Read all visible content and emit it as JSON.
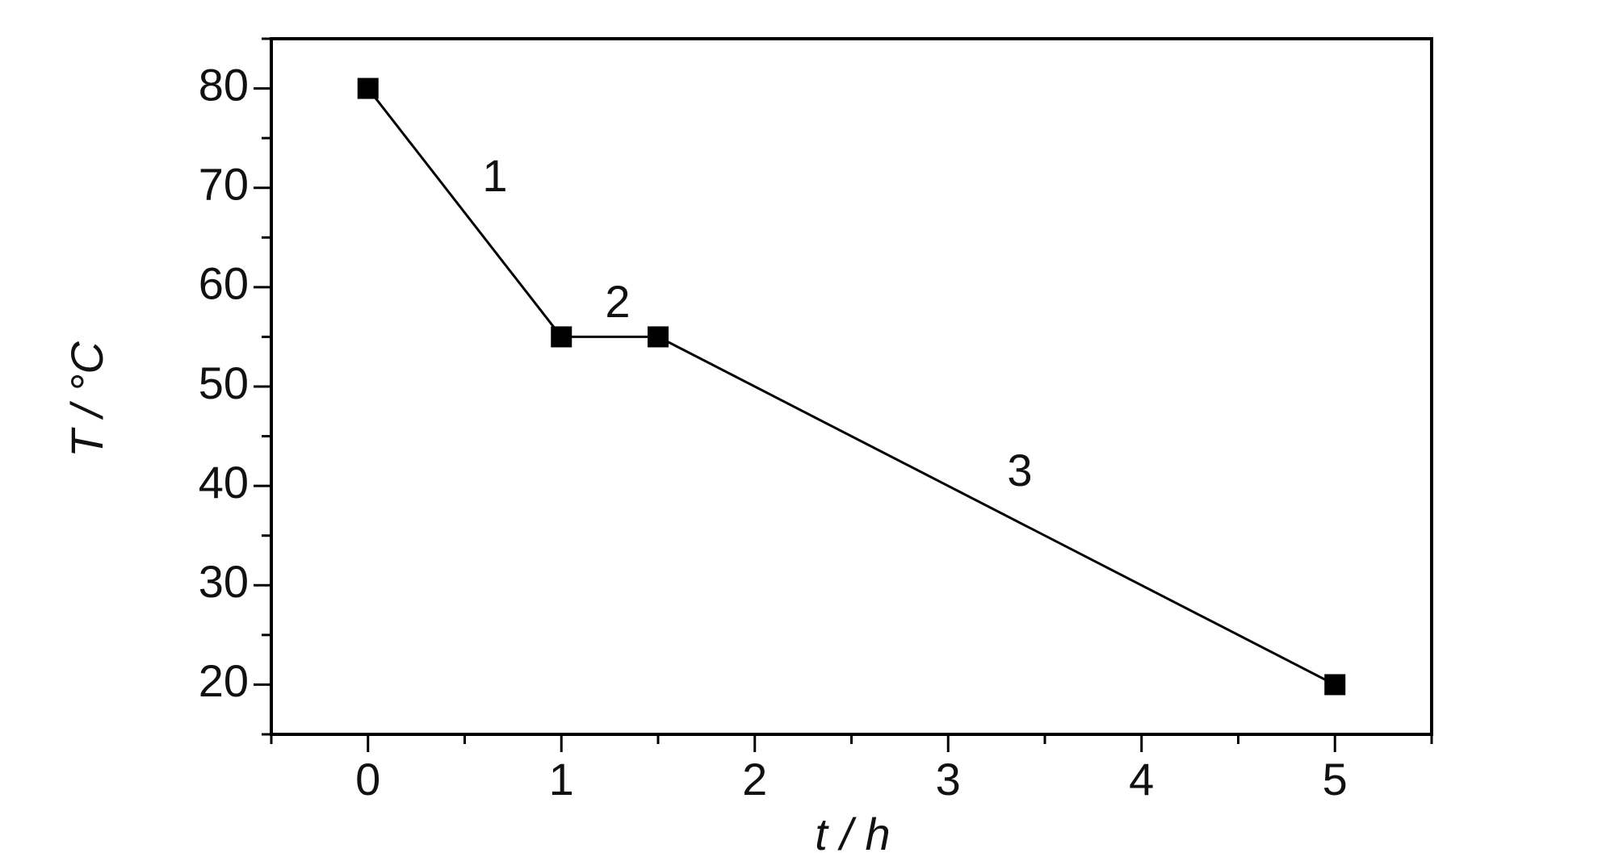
{
  "chart_data": {
    "type": "line",
    "xlabel": "t / h",
    "ylabel": "T / °C",
    "x": [
      0,
      1,
      1.5,
      5
    ],
    "series": [
      {
        "color": "#000000",
        "values": [
          80,
          55,
          55,
          20
        ]
      }
    ],
    "xlim": [
      -0.5,
      5.5
    ],
    "xticks": [
      0,
      1,
      2,
      3,
      4,
      5
    ],
    "xminorticks": [
      -0.5,
      0.5,
      1.5,
      2.5,
      3.5,
      4.5,
      5.5
    ],
    "ylim": [
      15,
      85
    ],
    "yticks": [
      20,
      30,
      40,
      50,
      60,
      70,
      80
    ],
    "yminorticks": [
      15,
      25,
      35,
      45,
      55,
      65,
      75,
      85
    ],
    "annotations": [
      "1",
      "2",
      "3"
    ],
    "grid": false
  }
}
